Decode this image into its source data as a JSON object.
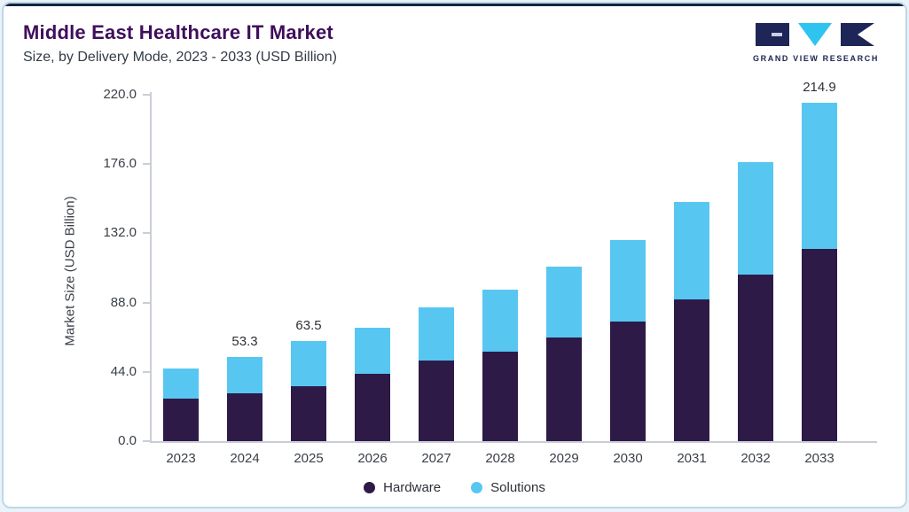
{
  "header": {
    "title": "Middle East Healthcare IT Market",
    "subtitle": "Size, by Delivery Mode, 2023 - 2033 (USD Billion)"
  },
  "logo": {
    "text": "GRAND VIEW RESEARCH"
  },
  "colors": {
    "hardware": "#2E1A47",
    "solutions": "#57C7F2",
    "title": "#3F0E5C",
    "subtitle": "#333B46",
    "axis_text": "#3A4048",
    "axis_line": "#C9CED6",
    "card_border": "#BCD8E8",
    "top_line": "#16253F"
  },
  "chart_data": {
    "type": "bar",
    "stacked": true,
    "title": "Middle East Healthcare IT Market Size, by Delivery Mode, 2023 - 2033 (USD Billion)",
    "categories": [
      "2023",
      "2024",
      "2025",
      "2026",
      "2027",
      "2028",
      "2029",
      "2030",
      "2031",
      "2032",
      "2033"
    ],
    "series": [
      {
        "name": "Hardware",
        "values": [
          27.0,
          30.5,
          35.0,
          43.0,
          51.0,
          57.0,
          66.0,
          76.0,
          90.0,
          106.0,
          122.0
        ]
      },
      {
        "name": "Solutions",
        "values": [
          19.0,
          22.8,
          28.5,
          29.0,
          34.0,
          39.0,
          45.0,
          52.0,
          62.0,
          71.0,
          92.9
        ]
      }
    ],
    "totals": [
      46.0,
      53.3,
      63.5,
      72.0,
      85.0,
      96.0,
      111.0,
      128.0,
      152.0,
      177.0,
      214.9
    ],
    "total_labels": {
      "1": "53.3",
      "2": "63.5",
      "10": "214.9"
    },
    "ylabel": "Market Size (USD Billion)",
    "xlabel": "",
    "ylim": [
      0,
      220
    ],
    "yticks": [
      0,
      44,
      88,
      132,
      176,
      220
    ],
    "ytick_labels": [
      "0.0",
      "44.0",
      "88.0",
      "132.0",
      "176.0",
      "220.0"
    ],
    "grid": false,
    "legend_position": "bottom"
  },
  "legend": {
    "items": [
      {
        "label": "Hardware"
      },
      {
        "label": "Solutions"
      }
    ]
  }
}
